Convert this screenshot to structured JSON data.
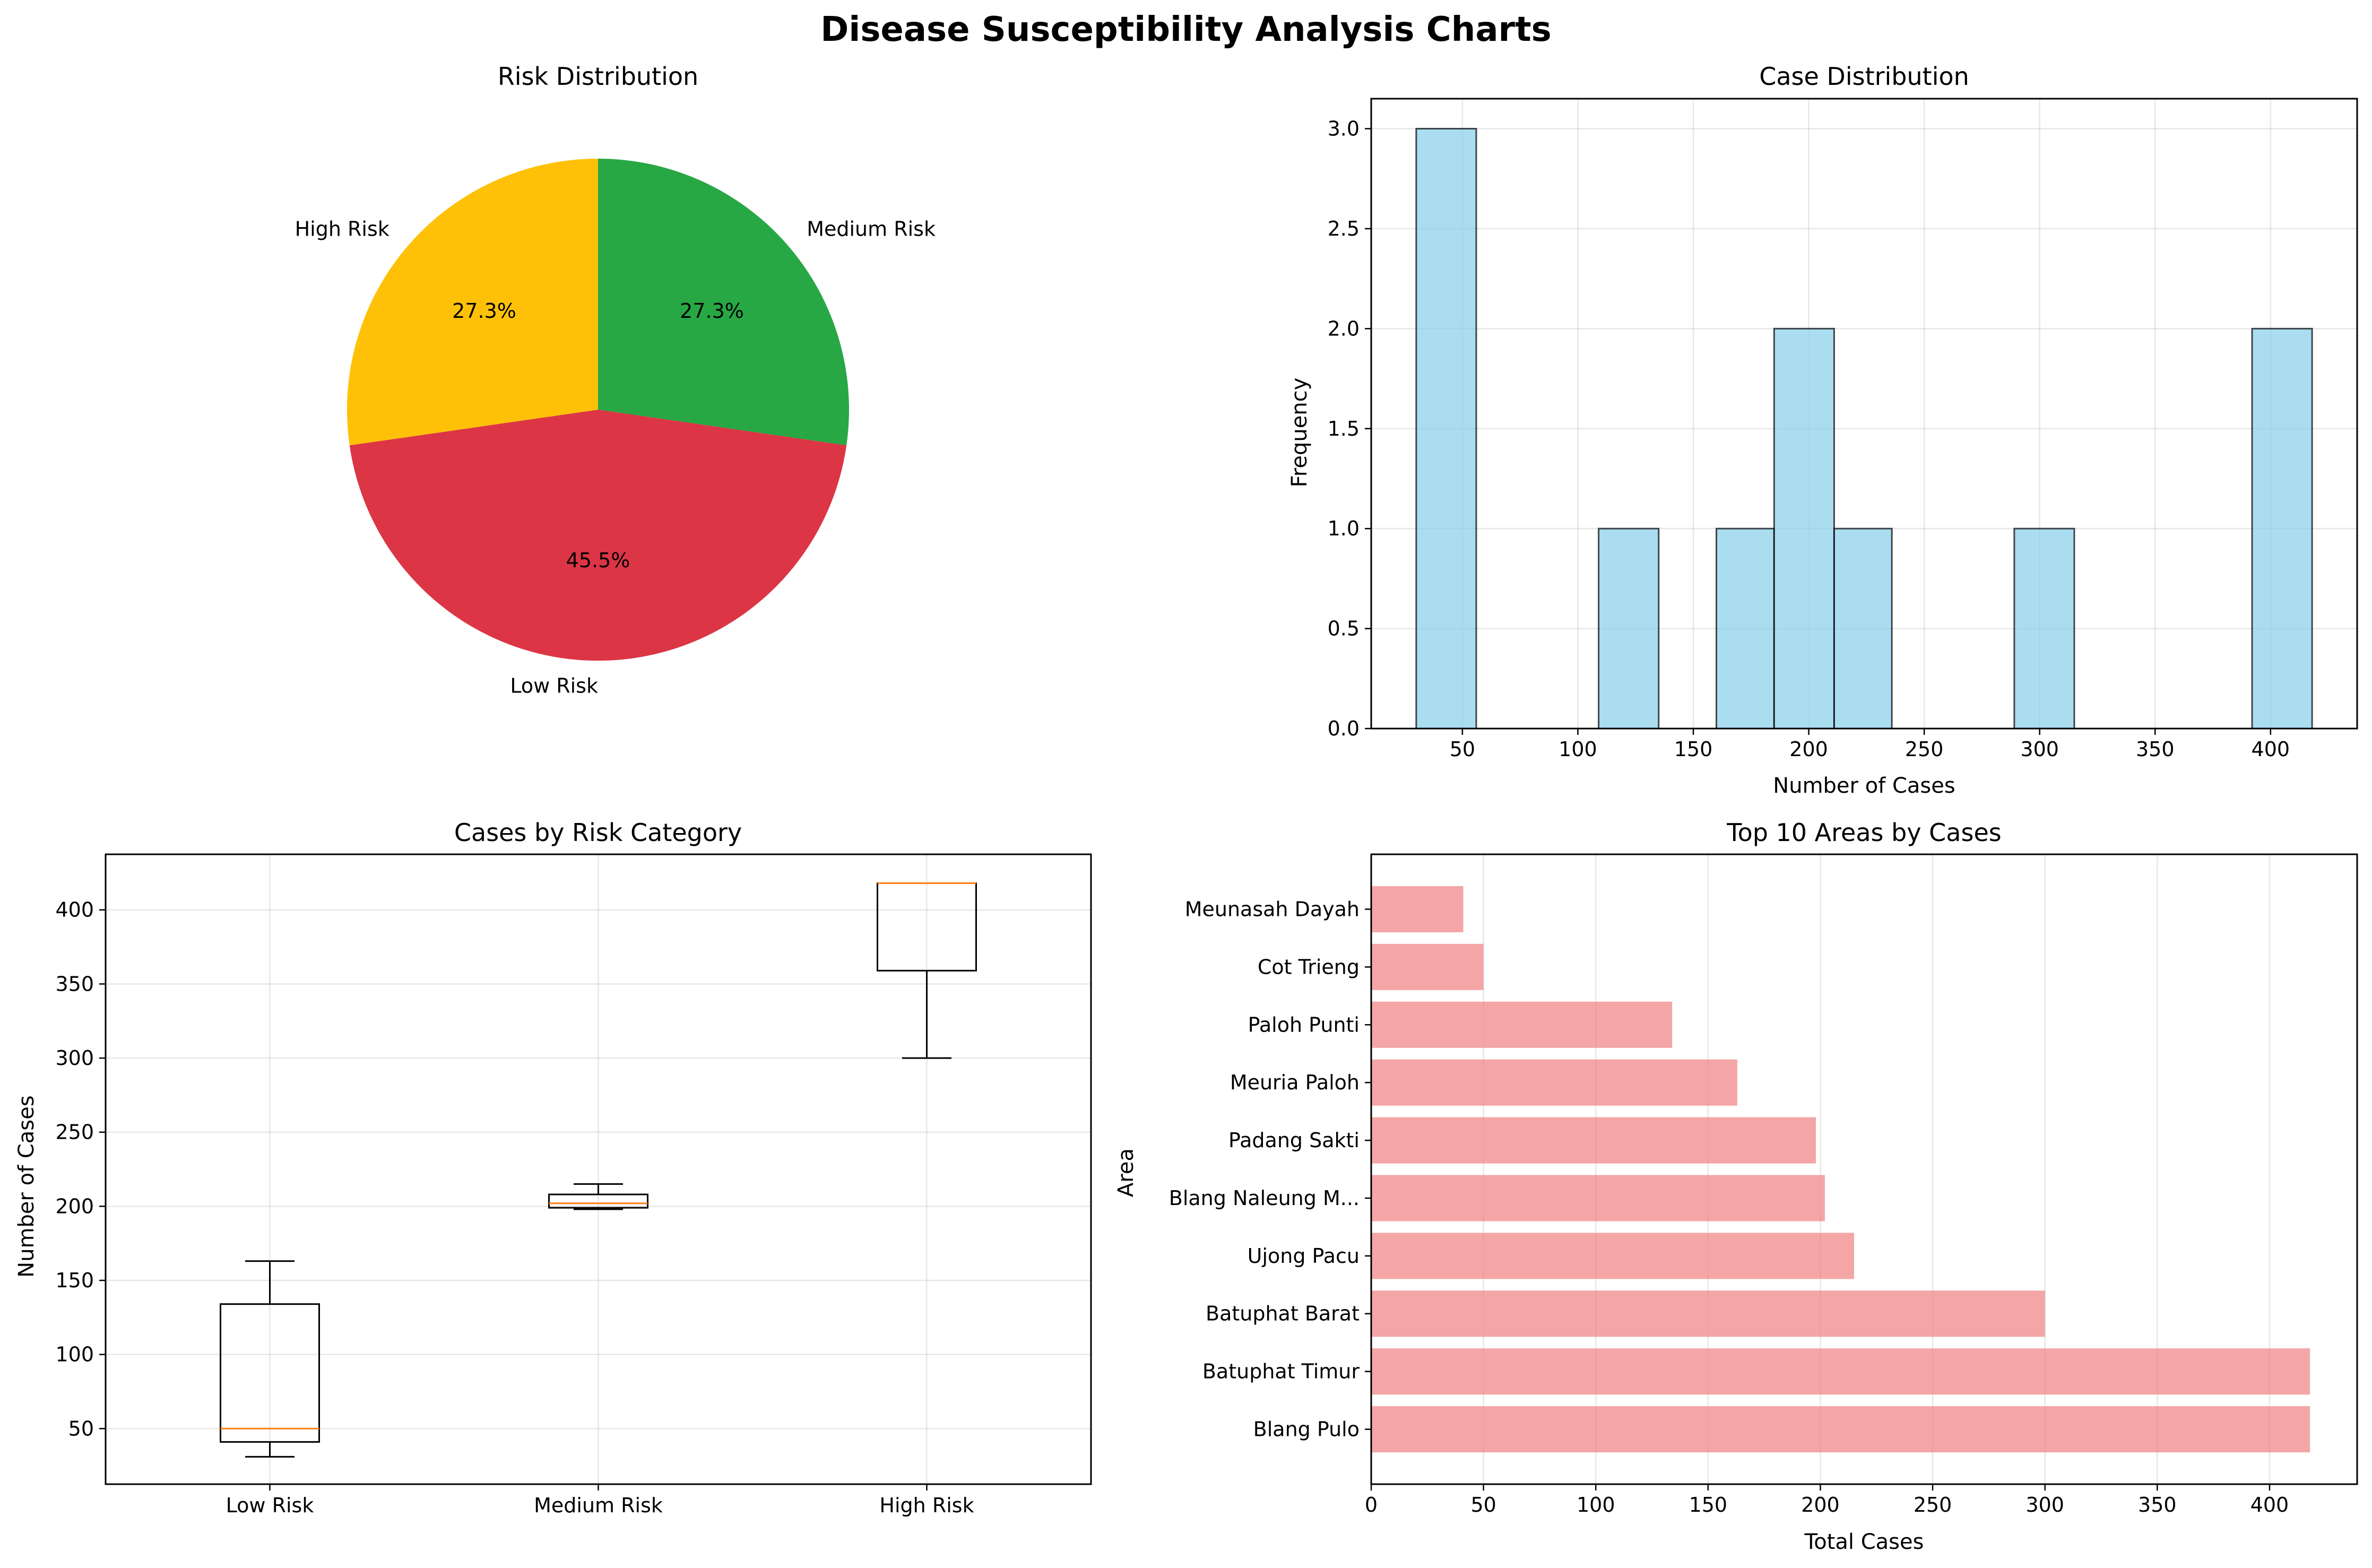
{
  "figure": {
    "title": "Disease Susceptibility Analysis Charts"
  },
  "chart_data": [
    {
      "type": "pie",
      "title": "Risk Distribution",
      "slices": [
        {
          "label": "Medium Risk",
          "pct": 27.3,
          "pct_label": "27.3%",
          "color": "#28a745"
        },
        {
          "label": "Low Risk",
          "pct": 45.5,
          "pct_label": "45.5%",
          "color": "#dc3545"
        },
        {
          "label": "High Risk",
          "pct": 27.3,
          "pct_label": "27.3%",
          "color": "#ffc107"
        }
      ]
    },
    {
      "type": "bar",
      "title": "Case Distribution",
      "xlabel": "Number of Cases",
      "ylabel": "Frequency",
      "xlim": [
        10.5,
        437.5
      ],
      "ylim": [
        0,
        3.15
      ],
      "xticks": [
        50,
        100,
        150,
        200,
        250,
        300,
        350,
        400
      ],
      "yticks": [
        0.0,
        0.5,
        1.0,
        1.5,
        2.0,
        2.5,
        3.0
      ],
      "ytick_labels": [
        "0.0",
        "0.5",
        "1.0",
        "1.5",
        "2.0",
        "2.5",
        "3.0"
      ],
      "bins": [
        {
          "x0": 30,
          "x1": 56,
          "count": 3
        },
        {
          "x0": 109,
          "x1": 135,
          "count": 1
        },
        {
          "x0": 160,
          "x1": 185,
          "count": 1
        },
        {
          "x0": 185,
          "x1": 211,
          "count": 2
        },
        {
          "x0": 211,
          "x1": 236,
          "count": 1
        },
        {
          "x0": 289,
          "x1": 315,
          "count": 1
        },
        {
          "x0": 392,
          "x1": 418,
          "count": 2
        }
      ],
      "color": "#87ceeb"
    },
    {
      "type": "box",
      "title": "Cases by Risk Category",
      "ylabel": "Number of Cases",
      "ylim": [
        12.5,
        437.5
      ],
      "yticks": [
        50,
        100,
        150,
        200,
        250,
        300,
        350,
        400
      ],
      "categories": [
        "Low Risk",
        "Medium Risk",
        "High Risk"
      ],
      "boxes": [
        {
          "whisker_low": 31,
          "q1": 41,
          "median": 50,
          "q3": 134,
          "whisker_high": 163
        },
        {
          "whisker_low": 198,
          "q1": 199,
          "median": 202,
          "q3": 208,
          "whisker_high": 215
        },
        {
          "whisker_low": 300,
          "q1": 359,
          "median": 418,
          "q3": 418,
          "whisker_high": 418
        }
      ],
      "median_color": "#ff7f0e"
    },
    {
      "type": "bar",
      "orientation": "horizontal",
      "title": "Top 10 Areas by Cases",
      "xlabel": "Total Cases",
      "ylabel": "Area",
      "xlim": [
        0,
        439
      ],
      "xticks": [
        0,
        50,
        100,
        150,
        200,
        250,
        300,
        350,
        400
      ],
      "categories": [
        "Blang Pulo",
        "Batuphat Timur",
        "Batuphat Barat",
        "Ujong Pacu",
        "Blang Naleung M...",
        "Padang Sakti",
        "Meuria Paloh",
        "Paloh Punti",
        "Cot Trieng",
        "Meunasah Dayah"
      ],
      "values": [
        418,
        418,
        300,
        215,
        202,
        198,
        163,
        134,
        50,
        41
      ],
      "color": "#f08080"
    }
  ]
}
